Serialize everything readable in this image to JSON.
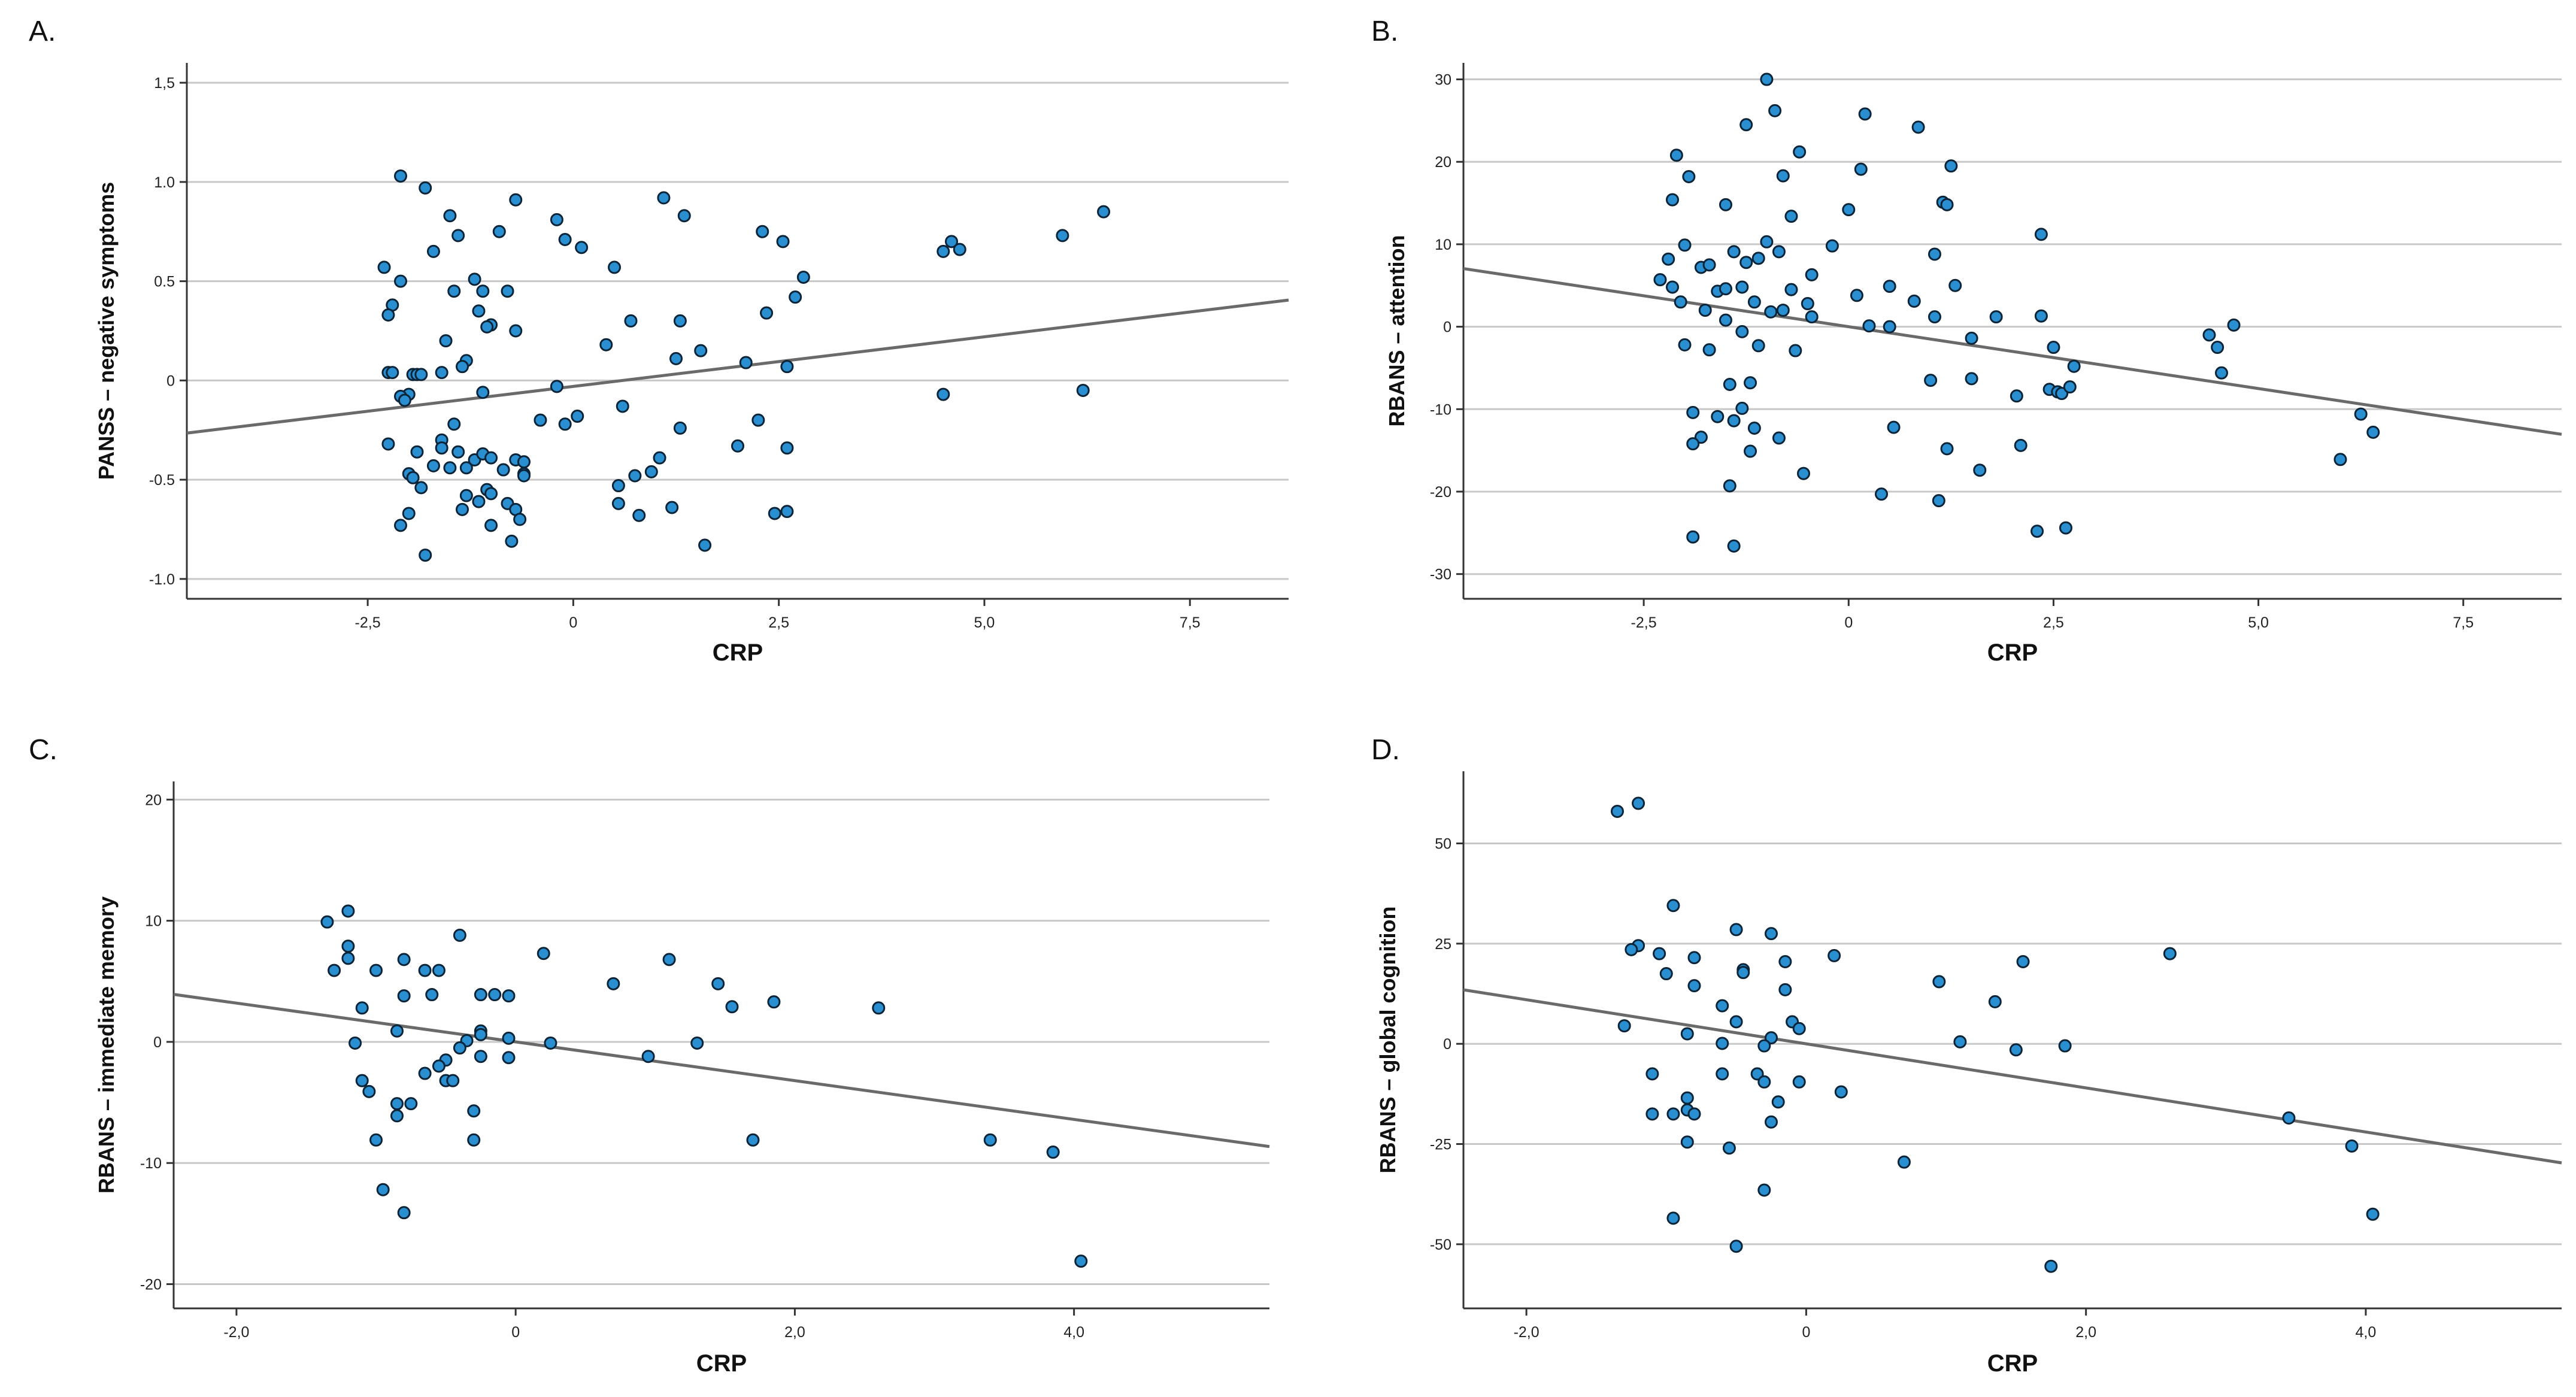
{
  "chart_data": [
    {
      "panel": "A.",
      "type": "scatter",
      "xlabel": "CRP",
      "ylabel": "PANSS – negative symptoms",
      "xlim": [
        -4.7,
        8.7
      ],
      "ylim": [
        -1.1,
        1.6
      ],
      "xticks": [
        -2.5,
        0,
        2.5,
        5.0,
        7.5
      ],
      "xtick_labels": [
        "-2,5",
        "0",
        "2,5",
        "5,0",
        "7,5"
      ],
      "yticks": [
        1.5,
        1.0,
        0.5,
        0,
        -0.5,
        -1.0
      ],
      "ytick_labels": [
        "1,5",
        "1.0",
        "0.5",
        "0",
        "-0.5",
        "-1.0"
      ],
      "fit": {
        "slope": 0.05,
        "intercept": -0.03
      },
      "points": [
        [
          -2.1,
          1.03
        ],
        [
          -1.8,
          0.97
        ],
        [
          -2.3,
          0.57
        ],
        [
          -2.1,
          0.5
        ],
        [
          -2.2,
          0.38
        ],
        [
          -2.25,
          0.33
        ],
        [
          -1.7,
          0.65
        ],
        [
          -1.5,
          0.83
        ],
        [
          -1.4,
          0.73
        ],
        [
          -1.2,
          0.51
        ],
        [
          -1.1,
          0.45
        ],
        [
          -1.15,
          0.35
        ],
        [
          -1.0,
          0.28
        ],
        [
          -1.3,
          0.1
        ],
        [
          -1.35,
          0.07
        ],
        [
          -1.55,
          0.2
        ],
        [
          -1.45,
          0.45
        ],
        [
          -1.05,
          0.27
        ],
        [
          -0.9,
          0.75
        ],
        [
          -0.8,
          0.45
        ],
        [
          -0.7,
          0.91
        ],
        [
          -0.7,
          0.25
        ],
        [
          -0.2,
          0.81
        ],
        [
          -0.1,
          0.71
        ],
        [
          0.1,
          0.67
        ],
        [
          0.5,
          0.57
        ],
        [
          1.1,
          0.92
        ],
        [
          1.35,
          0.83
        ],
        [
          2.3,
          0.75
        ],
        [
          2.55,
          0.7
        ],
        [
          2.8,
          0.52
        ],
        [
          2.7,
          0.42
        ],
        [
          2.35,
          0.34
        ],
        [
          1.3,
          0.3
        ],
        [
          0.7,
          0.3
        ],
        [
          0.4,
          0.18
        ],
        [
          1.55,
          0.15
        ],
        [
          1.25,
          0.11
        ],
        [
          2.1,
          0.09
        ],
        [
          2.6,
          0.07
        ],
        [
          -2.25,
          0.04
        ],
        [
          -2.2,
          0.04
        ],
        [
          -1.95,
          0.03
        ],
        [
          -1.9,
          0.03
        ],
        [
          -1.85,
          0.03
        ],
        [
          -1.6,
          0.04
        ],
        [
          -2.0,
          -0.07
        ],
        [
          -2.1,
          -0.08
        ],
        [
          -2.05,
          -0.1
        ],
        [
          -1.1,
          -0.06
        ],
        [
          -0.2,
          -0.03
        ],
        [
          -0.4,
          -0.2
        ],
        [
          -0.1,
          -0.22
        ],
        [
          0.05,
          -0.18
        ],
        [
          0.6,
          -0.13
        ],
        [
          4.5,
          -0.07
        ],
        [
          6.2,
          -0.05
        ],
        [
          1.3,
          -0.24
        ],
        [
          2.25,
          -0.2
        ],
        [
          2.0,
          -0.33
        ],
        [
          2.6,
          -0.34
        ],
        [
          -2.25,
          -0.32
        ],
        [
          -1.9,
          -0.36
        ],
        [
          -1.6,
          -0.3
        ],
        [
          -1.45,
          -0.22
        ],
        [
          -1.4,
          -0.36
        ],
        [
          -1.2,
          -0.4
        ],
        [
          -1.1,
          -0.37
        ],
        [
          -1.0,
          -0.39
        ],
        [
          -0.7,
          -0.4
        ],
        [
          -0.6,
          -0.41
        ],
        [
          -0.6,
          -0.47
        ],
        [
          -0.85,
          -0.45
        ],
        [
          -1.6,
          -0.34
        ],
        [
          -1.3,
          -0.44
        ],
        [
          -2.0,
          -0.47
        ],
        [
          -1.95,
          -0.49
        ],
        [
          -1.85,
          -0.54
        ],
        [
          -1.7,
          -0.43
        ],
        [
          -1.5,
          -0.44
        ],
        [
          -1.05,
          -0.55
        ],
        [
          -1.0,
          -0.57
        ],
        [
          -1.15,
          -0.61
        ],
        [
          -1.3,
          -0.58
        ],
        [
          -1.35,
          -0.65
        ],
        [
          -0.8,
          -0.62
        ],
        [
          -0.7,
          -0.65
        ],
        [
          -0.65,
          -0.7
        ],
        [
          -0.6,
          -0.48
        ],
        [
          -1.0,
          -0.73
        ],
        [
          -2.0,
          -0.67
        ],
        [
          -2.1,
          -0.73
        ],
        [
          -1.8,
          -0.88
        ],
        [
          -0.75,
          -0.81
        ],
        [
          0.55,
          -0.53
        ],
        [
          0.95,
          -0.46
        ],
        [
          1.05,
          -0.39
        ],
        [
          0.75,
          -0.48
        ],
        [
          0.55,
          -0.62
        ],
        [
          0.8,
          -0.68
        ],
        [
          1.2,
          -0.64
        ],
        [
          1.6,
          -0.83
        ],
        [
          2.45,
          -0.67
        ],
        [
          2.6,
          -0.66
        ],
        [
          4.5,
          0.65
        ],
        [
          4.6,
          0.7
        ],
        [
          4.7,
          0.66
        ],
        [
          5.95,
          0.73
        ],
        [
          6.45,
          0.85
        ]
      ]
    },
    {
      "panel": "B.",
      "type": "scatter",
      "xlabel": "CRP",
      "ylabel": "RBANS – attention",
      "xlim": [
        -4.7,
        8.7
      ],
      "ylim": [
        -33,
        32
      ],
      "xticks": [
        -2.5,
        0,
        2.5,
        5.0,
        7.5
      ],
      "xtick_labels": [
        "-2,5",
        "0",
        "2,5",
        "5,0",
        "7,5"
      ],
      "yticks": [
        30,
        20,
        10,
        0,
        -10,
        -20,
        -30
      ],
      "ytick_labels": [
        "30",
        "20",
        "10",
        "0",
        "-10",
        "-20",
        "-30"
      ],
      "fit": {
        "slope": -1.5,
        "intercept": 0
      },
      "points": [
        [
          -1.0,
          30
        ],
        [
          -1.25,
          24.5
        ],
        [
          -0.9,
          26.2
        ],
        [
          0.2,
          25.8
        ],
        [
          0.85,
          24.2
        ],
        [
          -2.1,
          20.8
        ],
        [
          -1.95,
          18.2
        ],
        [
          -0.6,
          21.2
        ],
        [
          -0.8,
          18.3
        ],
        [
          0.15,
          19.1
        ],
        [
          1.25,
          19.5
        ],
        [
          -2.15,
          15.4
        ],
        [
          -1.5,
          14.8
        ],
        [
          -0.7,
          13.4
        ],
        [
          0.0,
          14.2
        ],
        [
          1.15,
          15.1
        ],
        [
          1.2,
          14.8
        ],
        [
          2.35,
          11.2
        ],
        [
          -2.2,
          8.2
        ],
        [
          -2.0,
          9.9
        ],
        [
          -1.8,
          7.2
        ],
        [
          -1.7,
          7.5
        ],
        [
          -1.4,
          9.1
        ],
        [
          -1.25,
          7.8
        ],
        [
          -1.1,
          8.3
        ],
        [
          -1.0,
          10.3
        ],
        [
          -0.85,
          9.1
        ],
        [
          -0.45,
          6.3
        ],
        [
          -0.2,
          9.8
        ],
        [
          1.05,
          8.8
        ],
        [
          -2.3,
          5.7
        ],
        [
          -2.15,
          4.8
        ],
        [
          -2.05,
          3.0
        ],
        [
          -1.75,
          2.0
        ],
        [
          -1.6,
          4.3
        ],
        [
          -1.5,
          4.6
        ],
        [
          -1.3,
          4.8
        ],
        [
          -1.15,
          3.0
        ],
        [
          -0.8,
          2.0
        ],
        [
          -0.7,
          4.5
        ],
        [
          -0.5,
          2.8
        ],
        [
          0.1,
          3.8
        ],
        [
          0.5,
          4.9
        ],
        [
          0.8,
          3.1
        ],
        [
          1.3,
          5.0
        ],
        [
          -1.5,
          0.8
        ],
        [
          -1.3,
          -0.6
        ],
        [
          -0.95,
          1.8
        ],
        [
          -0.45,
          1.2
        ],
        [
          0.25,
          0.1
        ],
        [
          0.5,
          0.0
        ],
        [
          1.05,
          1.2
        ],
        [
          1.5,
          -1.4
        ],
        [
          1.8,
          1.2
        ],
        [
          2.35,
          1.3
        ],
        [
          2.5,
          -2.5
        ],
        [
          -2.0,
          -2.2
        ],
        [
          -1.7,
          -2.8
        ],
        [
          -1.1,
          -2.3
        ],
        [
          -0.65,
          -2.9
        ],
        [
          -1.45,
          -7.0
        ],
        [
          -1.2,
          -6.8
        ],
        [
          1.0,
          -6.5
        ],
        [
          1.5,
          -6.3
        ],
        [
          2.05,
          -8.4
        ],
        [
          2.45,
          -7.6
        ],
        [
          2.55,
          -7.9
        ],
        [
          2.6,
          -8.1
        ],
        [
          2.7,
          -7.3
        ],
        [
          2.75,
          -4.8
        ],
        [
          -1.9,
          -10.4
        ],
        [
          -1.6,
          -10.9
        ],
        [
          -1.4,
          -11.4
        ],
        [
          -1.3,
          -9.9
        ],
        [
          -1.15,
          -12.3
        ],
        [
          -1.8,
          -13.4
        ],
        [
          -1.9,
          -14.2
        ],
        [
          -1.2,
          -15.1
        ],
        [
          -0.85,
          -13.5
        ],
        [
          0.55,
          -12.2
        ],
        [
          1.2,
          -14.8
        ],
        [
          1.6,
          -17.4
        ],
        [
          2.1,
          -14.4
        ],
        [
          -0.55,
          -17.8
        ],
        [
          -1.45,
          -19.3
        ],
        [
          0.4,
          -20.3
        ],
        [
          1.1,
          -21.1
        ],
        [
          -1.9,
          -25.5
        ],
        [
          -1.4,
          -26.6
        ],
        [
          2.3,
          -24.8
        ],
        [
          2.65,
          -24.4
        ],
        [
          4.4,
          -1.0
        ],
        [
          4.5,
          -2.5
        ],
        [
          4.7,
          0.2
        ],
        [
          4.55,
          -5.6
        ],
        [
          6.0,
          -16.1
        ],
        [
          6.25,
          -10.6
        ],
        [
          6.4,
          -12.8
        ]
      ]
    },
    {
      "panel": "C.",
      "type": "scatter",
      "xlabel": "CRP",
      "ylabel": "RBANS – immediate memory",
      "xlim": [
        -2.45,
        5.4
      ],
      "ylim": [
        -22,
        21.5
      ],
      "xticks": [
        -2.0,
        0,
        2.0,
        4.0
      ],
      "xtick_labels": [
        "-2,0",
        "0",
        "2,0",
        "4,0"
      ],
      "yticks": [
        20,
        10,
        0,
        -10,
        -20
      ],
      "ytick_labels": [
        "20",
        "10",
        "0",
        "-10",
        "-20"
      ],
      "fit": {
        "slope": -1.6,
        "intercept": 0
      },
      "points": [
        [
          -1.35,
          9.9
        ],
        [
          -1.2,
          10.8
        ],
        [
          -1.3,
          5.9
        ],
        [
          -1.2,
          6.9
        ],
        [
          -1.2,
          7.9
        ],
        [
          -1.0,
          5.9
        ],
        [
          -0.8,
          6.8
        ],
        [
          -0.65,
          5.9
        ],
        [
          -0.55,
          5.9
        ],
        [
          -0.4,
          8.8
        ],
        [
          0.2,
          7.3
        ],
        [
          0.7,
          4.8
        ],
        [
          1.1,
          6.8
        ],
        [
          1.45,
          4.8
        ],
        [
          -0.8,
          3.8
        ],
        [
          -0.6,
          3.9
        ],
        [
          -0.25,
          3.9
        ],
        [
          -0.15,
          3.9
        ],
        [
          -0.05,
          3.8
        ],
        [
          1.55,
          2.9
        ],
        [
          1.85,
          3.3
        ],
        [
          2.6,
          2.8
        ],
        [
          -1.1,
          2.8
        ],
        [
          -0.85,
          0.9
        ],
        [
          -1.15,
          -0.1
        ],
        [
          -0.35,
          0.1
        ],
        [
          -0.25,
          0.9
        ],
        [
          -0.25,
          0.6
        ],
        [
          -0.4,
          -0.5
        ],
        [
          -0.05,
          0.3
        ],
        [
          0.25,
          -0.1
        ],
        [
          1.3,
          -0.1
        ],
        [
          -0.5,
          -1.5
        ],
        [
          -0.25,
          -1.2
        ],
        [
          -0.05,
          -1.3
        ],
        [
          0.95,
          -1.2
        ],
        [
          -0.55,
          -2.0
        ],
        [
          -1.1,
          -3.2
        ],
        [
          -0.65,
          -2.6
        ],
        [
          -0.5,
          -3.2
        ],
        [
          -0.45,
          -3.2
        ],
        [
          -1.05,
          -4.1
        ],
        [
          -0.85,
          -5.1
        ],
        [
          -0.75,
          -5.1
        ],
        [
          -0.85,
          -6.1
        ],
        [
          -0.3,
          -5.7
        ],
        [
          -1.0,
          -8.1
        ],
        [
          -0.3,
          -8.1
        ],
        [
          1.7,
          -8.1
        ],
        [
          3.4,
          -8.1
        ],
        [
          3.85,
          -9.1
        ],
        [
          -0.95,
          -12.2
        ],
        [
          -0.8,
          -14.1
        ],
        [
          4.05,
          -18.1
        ]
      ]
    },
    {
      "panel": "D.",
      "type": "scatter",
      "xlabel": "CRP",
      "ylabel": "RBANS – global cognition",
      "xlim": [
        -2.45,
        5.4
      ],
      "ylim": [
        -66,
        68
      ],
      "xticks": [
        -2.0,
        0,
        2.0,
        4.0
      ],
      "xtick_labels": [
        "-2,0",
        "0",
        "2,0",
        "4,0"
      ],
      "yticks": [
        50,
        25,
        0,
        -25,
        -50
      ],
      "ytick_labels": [
        "50",
        "25",
        "0",
        "-25",
        "-50"
      ],
      "fit": {
        "slope": -5.5,
        "intercept": 0
      },
      "points": [
        [
          -1.35,
          58
        ],
        [
          -1.2,
          60
        ],
        [
          -0.95,
          34.5
        ],
        [
          -0.5,
          28.5
        ],
        [
          -0.25,
          27.5
        ],
        [
          -1.2,
          24.5
        ],
        [
          -1.25,
          23.5
        ],
        [
          -1.05,
          22.5
        ],
        [
          -0.8,
          21.5
        ],
        [
          -0.45,
          18.5
        ],
        [
          -0.15,
          20.5
        ],
        [
          0.2,
          22
        ],
        [
          1.55,
          20.5
        ],
        [
          2.6,
          22.5
        ],
        [
          -1.0,
          17.5
        ],
        [
          -0.8,
          14.5
        ],
        [
          -0.45,
          17.8
        ],
        [
          -0.15,
          13.5
        ],
        [
          0.95,
          15.5
        ],
        [
          1.35,
          10.5
        ],
        [
          -0.6,
          9.5
        ],
        [
          -0.5,
          5.5
        ],
        [
          -0.1,
          5.5
        ],
        [
          -0.05,
          3.8
        ],
        [
          -1.3,
          4.5
        ],
        [
          -0.85,
          2.5
        ],
        [
          -0.25,
          1.5
        ],
        [
          -0.6,
          0.1
        ],
        [
          -0.3,
          -0.5
        ],
        [
          1.1,
          0.5
        ],
        [
          1.5,
          -1.5
        ],
        [
          1.85,
          -0.5
        ],
        [
          -1.1,
          -7.5
        ],
        [
          -0.6,
          -7.5
        ],
        [
          -0.35,
          -7.5
        ],
        [
          -0.3,
          -9.5
        ],
        [
          -0.05,
          -9.5
        ],
        [
          0.25,
          -12
        ],
        [
          -0.85,
          -13.5
        ],
        [
          -0.2,
          -14.5
        ],
        [
          -0.85,
          -16.5
        ],
        [
          -0.8,
          -17.5
        ],
        [
          -0.95,
          -17.5
        ],
        [
          -1.1,
          -17.5
        ],
        [
          -0.25,
          -19.5
        ],
        [
          -0.85,
          -24.5
        ],
        [
          -0.55,
          -26
        ],
        [
          0.7,
          -29.5
        ],
        [
          -0.3,
          -36.5
        ],
        [
          -0.95,
          -43.5
        ],
        [
          -0.5,
          -50.5
        ],
        [
          1.75,
          -55.5
        ],
        [
          3.45,
          -18.5
        ],
        [
          3.9,
          -25.5
        ],
        [
          4.05,
          -42.5
        ]
      ]
    }
  ]
}
